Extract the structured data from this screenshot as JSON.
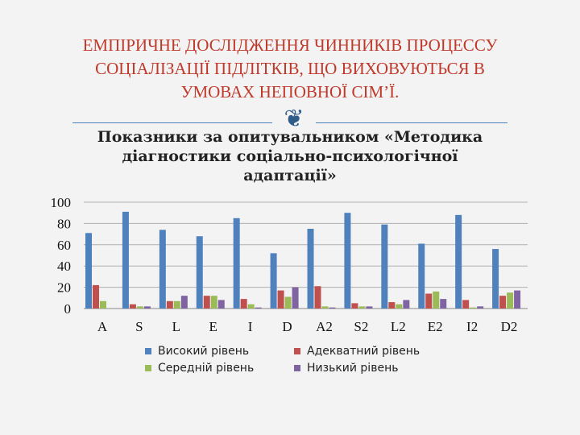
{
  "slide": {
    "title_lines": [
      "ЕМПІРИЧНЕ  ДОСЛІДЖЕННЯ ЧИННИКІВ ПРОЦЕССУ",
      "СОЦІАЛІЗАЦІЇ ПІДЛІТКІВ, ЩО ВИХОВУЮТЬСЯ В",
      "УМОВАХ НЕПОВНОЇ СІМ’Ї."
    ],
    "ornament_glyph": "❦",
    "ornament_icon": "floral-ornament-icon",
    "accent_color": "#c0392b"
  },
  "chart_data": {
    "type": "bar",
    "title_lines": [
      "Показники за опитувальником  «Методика",
      "діагностики соціально-психологічної",
      "адаптації»"
    ],
    "categories": [
      "A",
      "S",
      "L",
      "E",
      "I",
      "D",
      "A2",
      "S2",
      "L2",
      "E2",
      "I2",
      "D2"
    ],
    "series": [
      {
        "name": "Високий рівень",
        "color": "#4f81bd",
        "values": [
          71,
          91,
          74,
          68,
          85,
          52,
          75,
          90,
          79,
          61,
          88,
          56
        ]
      },
      {
        "name": "Адекватний рівень",
        "color": "#c0504d",
        "values": [
          22,
          4,
          7,
          12,
          9,
          17,
          21,
          5,
          6,
          14,
          8,
          12
        ]
      },
      {
        "name": "Середній рівень",
        "color": "#9bbb59",
        "values": [
          7,
          2,
          7,
          12,
          4,
          11,
          2,
          2,
          4,
          16,
          1,
          15
        ]
      },
      {
        "name": "Низький рівень",
        "color": "#8064a2",
        "values": [
          0,
          2,
          12,
          8,
          1,
          20,
          1,
          2,
          8,
          9,
          2,
          17
        ]
      }
    ],
    "y_ticks": [
      "0",
      "20",
      "40",
      "60",
      "80",
      "100"
    ],
    "ylim": [
      0,
      100
    ],
    "grid": true,
    "legend_position": "bottom"
  }
}
